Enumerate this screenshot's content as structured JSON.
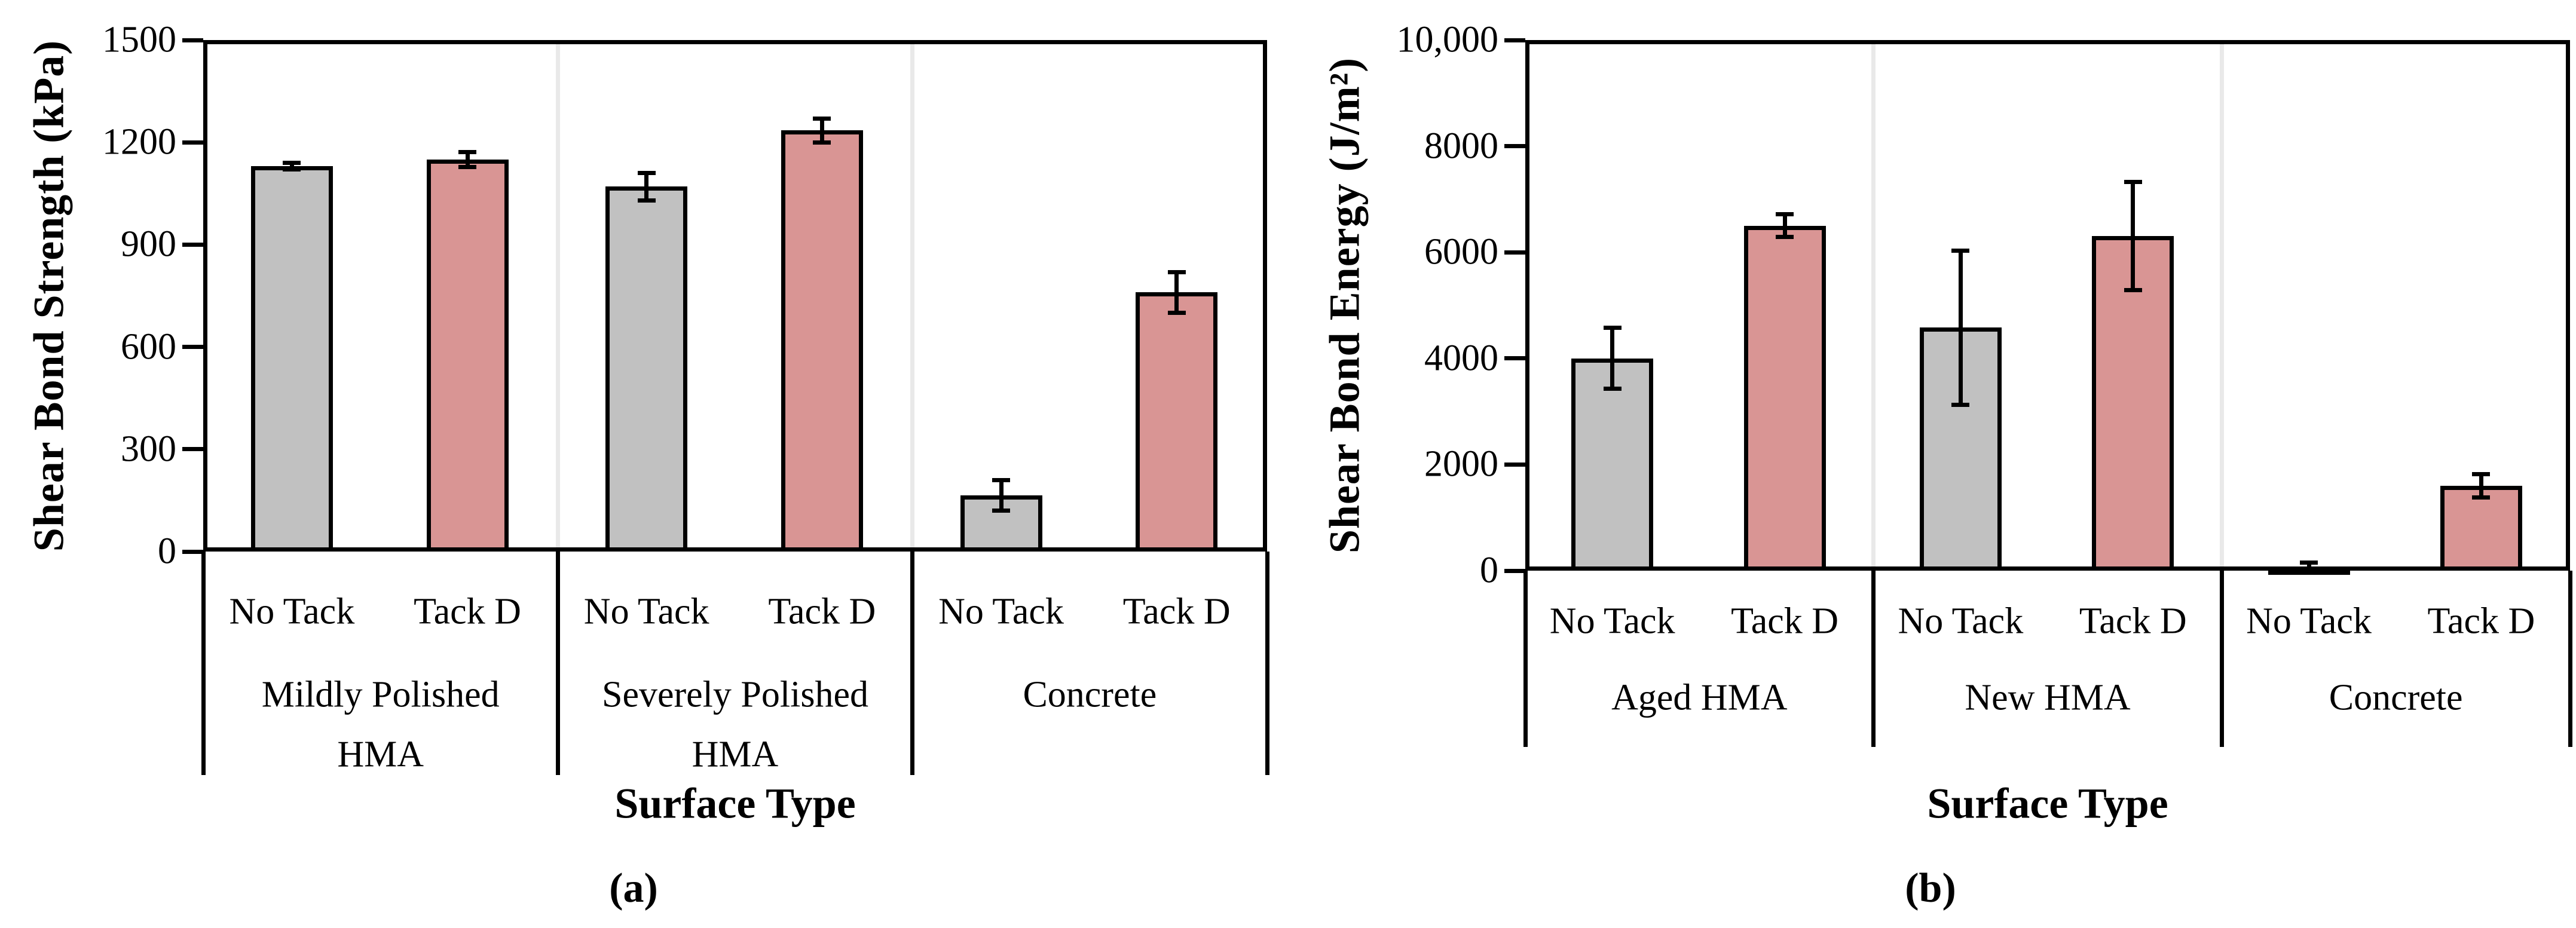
{
  "figure": {
    "colors": {
      "background": "#FFFFFF",
      "no_tack_fill": "#C1C1C1",
      "tack_d_fill": "#D99594",
      "bar_border": "#000000",
      "group_separator": "#E9E9E9",
      "axis": "#000000"
    }
  },
  "chart_data": [
    {
      "id": "a",
      "type": "bar",
      "caption": "(a)",
      "ylabel": "Shear Bond Strength (kPa)",
      "xlabel": "Surface Type",
      "ylim": [
        0,
        1500
      ],
      "yticks": [
        0,
        300,
        600,
        900,
        1200,
        1500
      ],
      "ytick_labels": [
        "0",
        "300",
        "600",
        "900",
        "1200",
        "1500"
      ],
      "series_names": [
        "No Tack",
        "Tack D"
      ],
      "grid": false,
      "legend": "none",
      "groups": [
        {
          "label_lines": [
            "Mildly Polished",
            "HMA"
          ],
          "bars": [
            {
              "series": "No Tack",
              "value": 1130,
              "error": 10
            },
            {
              "series": "Tack D",
              "value": 1150,
              "error": 22
            }
          ]
        },
        {
          "label_lines": [
            "Severely Polished",
            "HMA"
          ],
          "bars": [
            {
              "series": "No Tack",
              "value": 1070,
              "error": 40
            },
            {
              "series": "Tack D",
              "value": 1235,
              "error": 35
            }
          ]
        },
        {
          "label_lines": [
            "Concrete"
          ],
          "bars": [
            {
              "series": "No Tack",
              "value": 165,
              "error": 45
            },
            {
              "series": "Tack D",
              "value": 760,
              "error": 60
            }
          ]
        }
      ]
    },
    {
      "id": "b",
      "type": "bar",
      "caption": "(b)",
      "ylabel": "Shear Bond Energy (J/m²)",
      "xlabel": "Surface Type",
      "ylim": [
        0,
        10000
      ],
      "yticks": [
        0,
        2000,
        4000,
        6000,
        8000,
        10000
      ],
      "ytick_labels": [
        "0",
        "2000",
        "4000",
        "6000",
        "8000",
        "10,000"
      ],
      "series_names": [
        "No Tack",
        "Tack D"
      ],
      "grid": false,
      "legend": "none",
      "groups": [
        {
          "label_lines": [
            "Aged HMA"
          ],
          "bars": [
            {
              "series": "No Tack",
              "value": 4000,
              "error": 575
            },
            {
              "series": "Tack D",
              "value": 6500,
              "error": 215
            }
          ]
        },
        {
          "label_lines": [
            "New HMA"
          ],
          "bars": [
            {
              "series": "No Tack",
              "value": 4580,
              "error": 1450
            },
            {
              "series": "Tack D",
              "value": 6310,
              "error": 1020
            }
          ]
        },
        {
          "label_lines": [
            "Concrete"
          ],
          "bars": [
            {
              "series": "No Tack",
              "value": 80,
              "error": 70
            },
            {
              "series": "Tack D",
              "value": 1600,
              "error": 220
            }
          ]
        }
      ]
    }
  ]
}
